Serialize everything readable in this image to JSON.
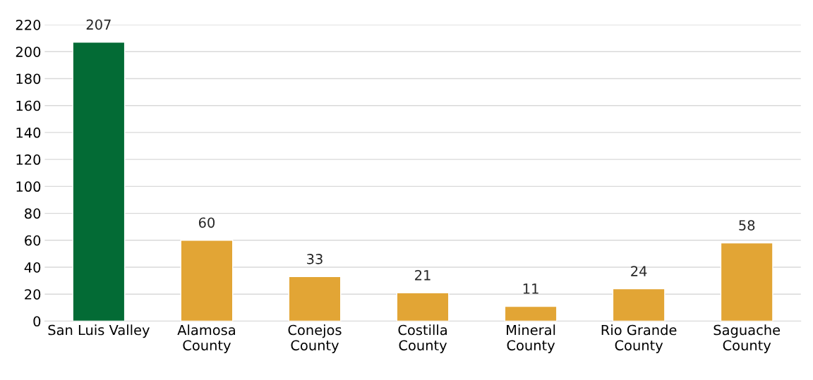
{
  "chart_data": {
    "type": "bar",
    "categories": [
      "San Luis Valley",
      "Alamosa\nCounty",
      "Conejos\nCounty",
      "Costilla\nCounty",
      "Mineral\nCounty",
      "Rio Grande\nCounty",
      "Saguache\nCounty"
    ],
    "values": [
      207,
      60,
      33,
      21,
      11,
      24,
      58
    ],
    "colors": [
      "#036b35",
      "#e2a535",
      "#e2a535",
      "#e2a535",
      "#e2a535",
      "#e2a535",
      "#e2a535"
    ],
    "ylim": [
      0,
      220
    ],
    "yticks": [
      0,
      20,
      40,
      60,
      80,
      100,
      120,
      140,
      160,
      180,
      200,
      220
    ],
    "grid": "y",
    "data_labels": true
  }
}
